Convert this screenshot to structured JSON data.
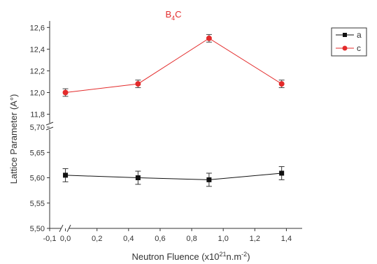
{
  "chart_data": {
    "type": "line",
    "title_main": "B",
    "title_sub": "4",
    "title_tail": "C",
    "title_color": "#e32b2b",
    "xlabel_main": "Neutron Fluence (x10",
    "xlabel_sup1": "21",
    "xlabel_mid": "n.m",
    "xlabel_sup2": "-2",
    "xlabel_tail": ")",
    "ylabel": "Lattice Parameter (A°)",
    "x_ticks": [
      "-0,1",
      "0,0",
      "0,2",
      "0,4",
      "0,6",
      "0,8",
      "1,0",
      "1,2",
      "1,4"
    ],
    "x_tick_values": [
      -0.1,
      0.0,
      0.2,
      0.4,
      0.6,
      0.8,
      1.0,
      1.2,
      1.4
    ],
    "xlim": [
      -0.1,
      1.5
    ],
    "upper_panel": {
      "ylim": [
        11.72,
        12.66
      ],
      "y_ticks": [
        "11,8",
        "12,0",
        "12,2",
        "12,4",
        "12,6"
      ],
      "y_tick_values": [
        11.8,
        12.0,
        12.2,
        12.4,
        12.6
      ]
    },
    "lower_panel": {
      "ylim": [
        5.5,
        5.7
      ],
      "y_ticks": [
        "5,50",
        "5,55",
        "5,60",
        "5,65",
        "5,70"
      ],
      "y_tick_values": [
        5.5,
        5.55,
        5.6,
        5.65,
        5.7
      ]
    },
    "series": [
      {
        "name": "a",
        "panel": "lower",
        "marker": "square",
        "color": "#111111",
        "x": [
          0.0,
          0.46,
          0.91,
          1.37
        ],
        "values": [
          5.605,
          5.6,
          5.596,
          5.609
        ],
        "error": [
          0.013,
          0.013,
          0.013,
          0.013
        ]
      },
      {
        "name": "c",
        "panel": "upper",
        "marker": "circle",
        "color": "#e32b2b",
        "x": [
          0.0,
          0.46,
          0.91,
          1.37
        ],
        "values": [
          12.0,
          12.08,
          12.5,
          12.08
        ],
        "error": [
          0.035,
          0.035,
          0.035,
          0.035
        ]
      }
    ],
    "legend": {
      "placement": "top-right",
      "entries": [
        "a",
        "c"
      ]
    },
    "grid": false
  }
}
